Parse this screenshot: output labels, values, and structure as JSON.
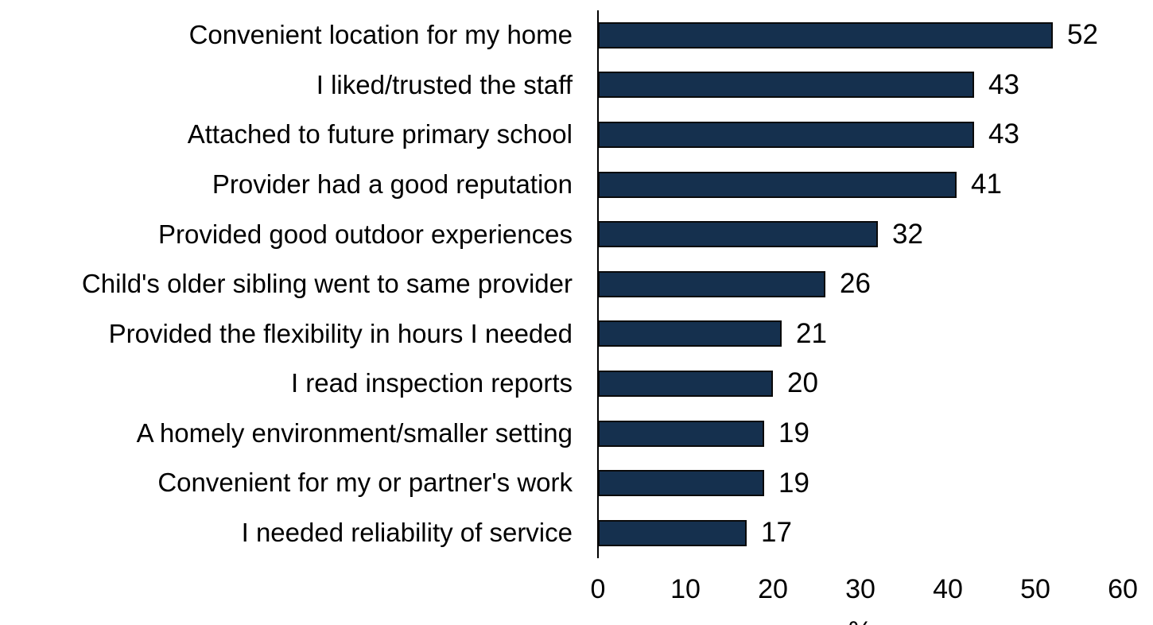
{
  "chart_data": {
    "type": "bar",
    "orientation": "horizontal",
    "title": "",
    "xlabel": "%",
    "ylabel": "",
    "categories": [
      "Convenient location for my home",
      "I liked/trusted the staff",
      "Attached to future primary school",
      "Provider had a good reputation",
      "Provided good outdoor experiences",
      "Child's older sibling went to same provider",
      "Provided the flexibility in hours I needed",
      "I read inspection reports",
      "A homely environment/smaller setting",
      "Convenient for my or partner's work",
      "I needed reliability of service"
    ],
    "values": [
      52,
      43,
      43,
      41,
      32,
      26,
      21,
      20,
      19,
      19,
      17
    ],
    "data_labels": [
      52,
      43,
      43,
      41,
      32,
      26,
      21,
      20,
      19,
      19,
      17
    ],
    "xlim": [
      0,
      60
    ],
    "xticks": [
      0,
      10,
      20,
      30,
      40,
      50,
      60
    ],
    "grid": false,
    "legend": false,
    "bar_color": "#15304E",
    "bar_border_color": "#0a0a0a",
    "axis_color": "#000000"
  }
}
